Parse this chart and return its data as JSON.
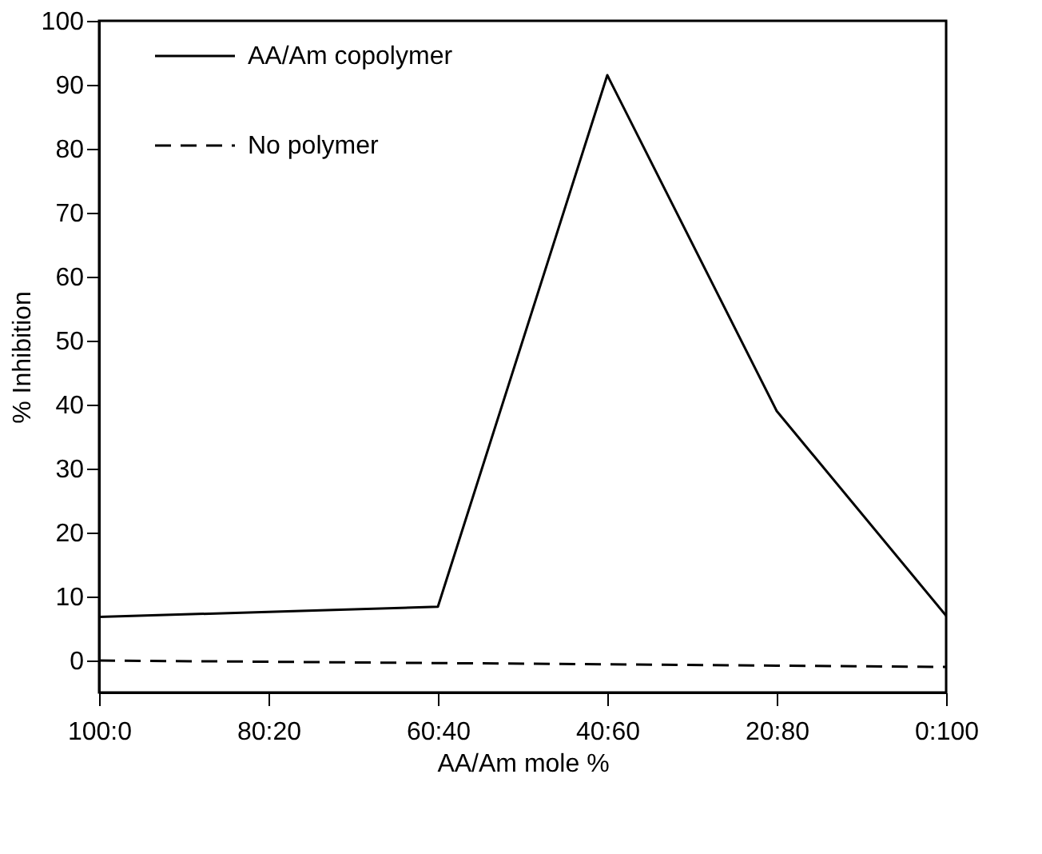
{
  "chart_data": {
    "type": "line",
    "xlabel": "AA/Am mole %",
    "ylabel": "% Inhibition",
    "categories": [
      "100:0",
      "80:20",
      "60:40",
      "40:60",
      "20:80",
      "0:100"
    ],
    "series": [
      {
        "name": "AA/Am copolymer",
        "color": "#000000",
        "line_style": "solid",
        "x": [
          "100:0",
          "60:40",
          "40:60",
          "20:80",
          "0:100"
        ],
        "values": [
          6.8,
          8.4,
          91.5,
          39,
          7
        ]
      },
      {
        "name": "No polymer",
        "color": "#000000",
        "line_style": "dashed",
        "values": [
          0,
          -0.2,
          -0.4,
          -0.6,
          -0.8,
          -1
        ]
      }
    ],
    "ylim": [
      -5,
      100
    ],
    "yticks": [
      0,
      10,
      20,
      30,
      40,
      50,
      60,
      70,
      80,
      90,
      100
    ],
    "grid": false,
    "legend": "top left",
    "marker": "none"
  }
}
